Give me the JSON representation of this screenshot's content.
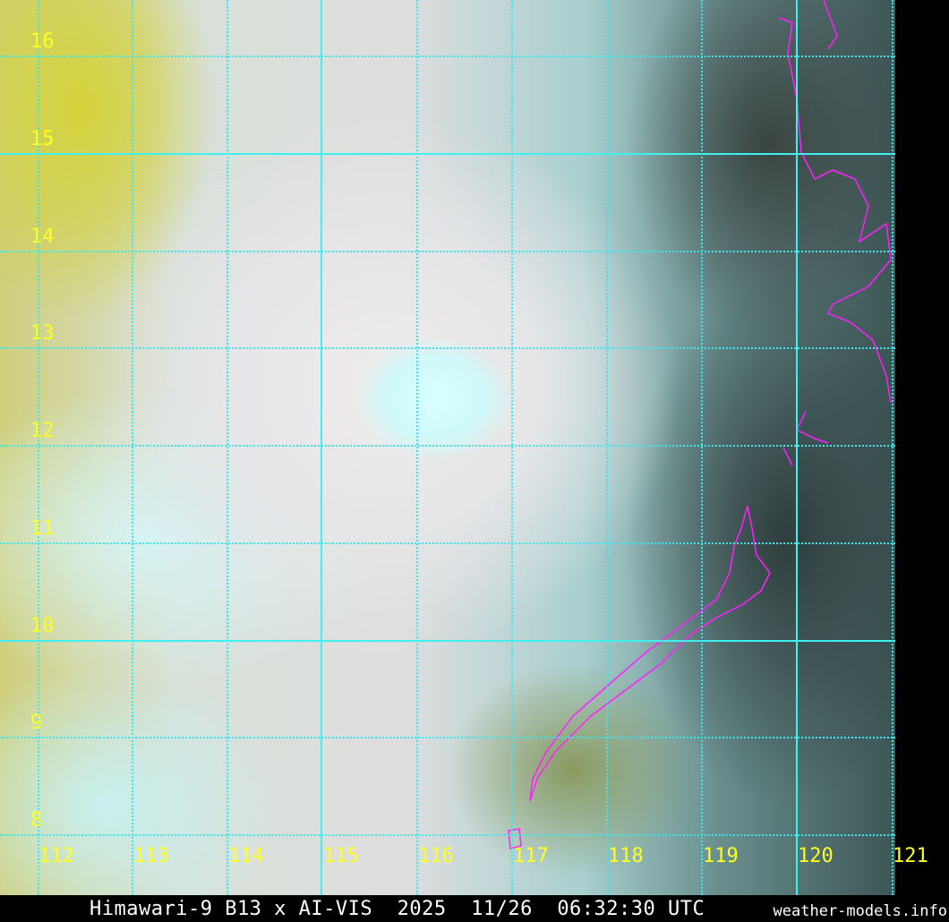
{
  "title": "Himawari-9 B13 x AI-VIS  2025  11/26  06:32:30 UTC",
  "source": "weather-models.info",
  "longitude_labels": [
    "112",
    "113",
    "114",
    "115",
    "116",
    "117",
    "118",
    "119",
    "120",
    "121"
  ],
  "latitude_labels": [
    "16",
    "15",
    "14",
    "13",
    "12",
    "11",
    "10",
    "9",
    "8"
  ],
  "colors": {
    "grid": "#40f0f0",
    "labels": "#ffff20",
    "coastline": "#ff20ff"
  }
}
